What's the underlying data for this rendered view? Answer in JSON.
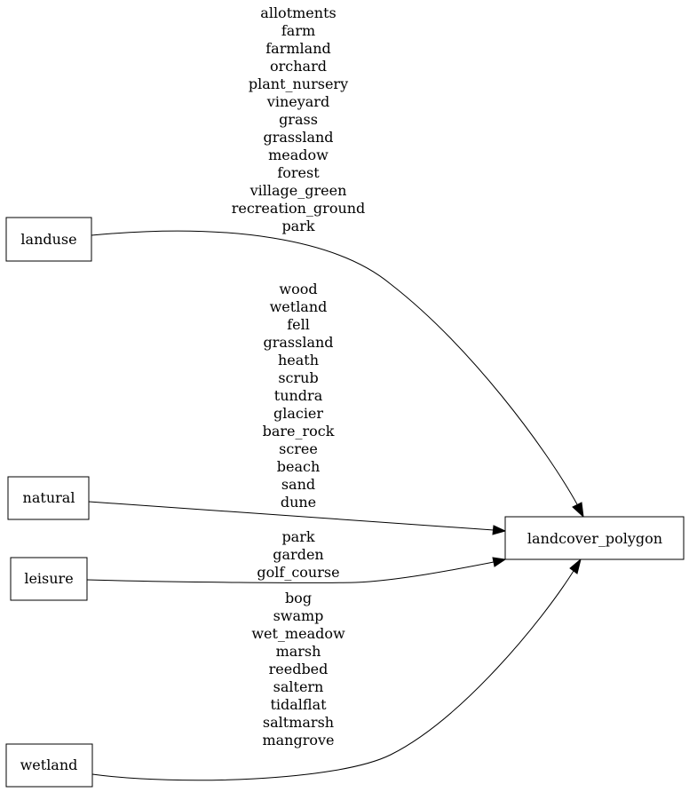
{
  "nodes": {
    "landuse": "landuse",
    "natural": "natural",
    "leisure": "leisure",
    "wetland": "wetland",
    "target": "landcover_polygon"
  },
  "edges": {
    "landuse": [
      "allotments",
      "farm",
      "farmland",
      "orchard",
      "plant_nursery",
      "vineyard",
      "grass",
      "grassland",
      "meadow",
      "forest",
      "village_green",
      "recreation_ground",
      "park"
    ],
    "natural": [
      "wood",
      "wetland",
      "fell",
      "grassland",
      "heath",
      "scrub",
      "tundra",
      "glacier",
      "bare_rock",
      "scree",
      "beach",
      "sand",
      "dune"
    ],
    "leisure": [
      "park",
      "garden",
      "golf_course"
    ],
    "wetland": [
      "bog",
      "swamp",
      "wet_meadow",
      "marsh",
      "reedbed",
      "saltern",
      "tidalflat",
      "saltmarsh",
      "mangrove"
    ]
  }
}
